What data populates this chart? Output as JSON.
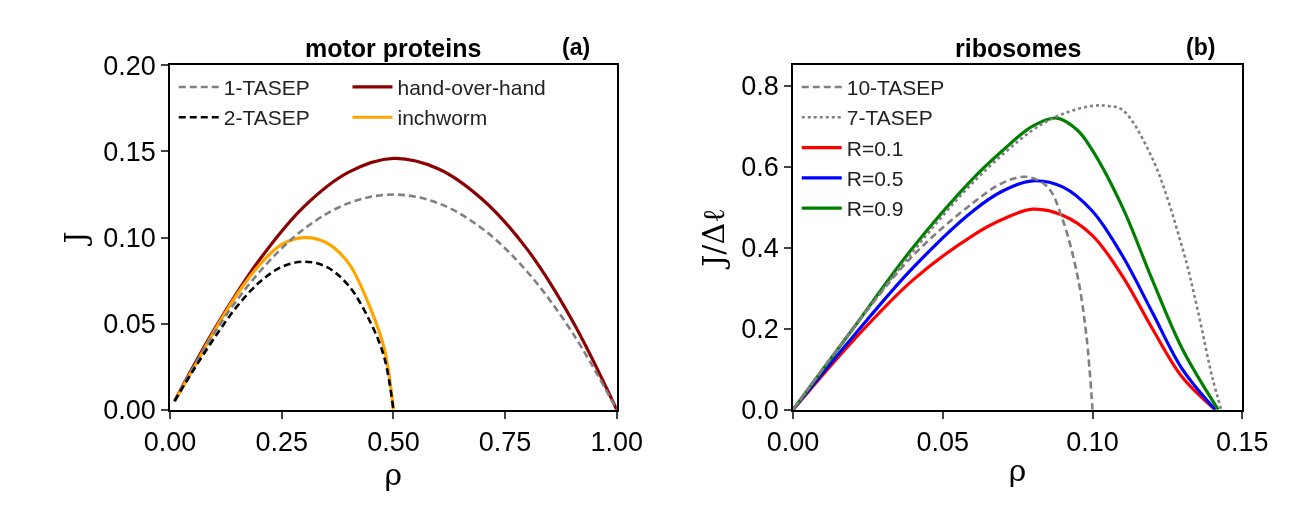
{
  "chart_data": [
    {
      "type": "line",
      "title": "motor proteins",
      "xlabel": "ρ",
      "ylabel": "J",
      "annotations": [
        "(a)"
      ],
      "xlim": [
        0,
        1
      ],
      "ylim": [
        0,
        0.2
      ],
      "xticks": [
        {
          "value": 0,
          "label": "0.00"
        },
        0.25,
        {
          "value": 0.5,
          "label": "0.50"
        },
        0.75,
        {
          "value": 1,
          "label": "1.00"
        }
      ],
      "yticks": [
        {
          "value": 0,
          "label": "0.00"
        },
        0.05,
        {
          "value": 0.1,
          "label": "0.10"
        },
        0.15,
        {
          "value": 0.2,
          "label": "0.20"
        }
      ],
      "legend": "top left",
      "series": [
        {
          "name": "1-TASEP",
          "color": "#808080",
          "line_style": "dashed",
          "x": [
            0.01,
            0.1,
            0.2,
            0.3,
            0.4,
            0.5,
            0.6,
            0.7,
            0.8,
            0.9,
            1.0
          ],
          "values": [
            0.005,
            0.045,
            0.08,
            0.105,
            0.12,
            0.125,
            0.12,
            0.105,
            0.08,
            0.045,
            0
          ]
        },
        {
          "name": "2-TASEP",
          "color": "#000000",
          "line_style": "dashed",
          "x": [
            0.01,
            0.05,
            0.1,
            0.15,
            0.2,
            0.25,
            0.3,
            0.35,
            0.4,
            0.45,
            0.48,
            0.5
          ],
          "values": [
            0.005,
            0.022,
            0.042,
            0.06,
            0.074,
            0.083,
            0.086,
            0.083,
            0.072,
            0.05,
            0.03,
            0
          ]
        },
        {
          "name": "hand-over-hand",
          "color": "#8b0000",
          "line_style": "solid",
          "x": [
            0.01,
            0.1,
            0.2,
            0.3,
            0.4,
            0.5,
            0.6,
            0.7,
            0.8,
            0.9,
            1.0
          ],
          "values": [
            0.005,
            0.047,
            0.087,
            0.118,
            0.138,
            0.146,
            0.14,
            0.122,
            0.093,
            0.052,
            0
          ]
        },
        {
          "name": "inchworm",
          "color": "#ffa500",
          "line_style": "solid",
          "x": [
            0.01,
            0.05,
            0.1,
            0.15,
            0.2,
            0.25,
            0.3,
            0.35,
            0.4,
            0.45,
            0.48,
            0.5
          ],
          "values": [
            0.005,
            0.023,
            0.046,
            0.067,
            0.084,
            0.096,
            0.1,
            0.097,
            0.085,
            0.058,
            0.035,
            0
          ]
        }
      ]
    },
    {
      "type": "line",
      "title": "ribosomes",
      "xlabel": "ρ",
      "ylabel": "J/Δℓ",
      "annotations": [
        "(b)"
      ],
      "xlim": [
        0,
        0.15
      ],
      "ylim": [
        0,
        0.85
      ],
      "xticks": [
        {
          "value": 0,
          "label": "0.00"
        },
        0.05,
        {
          "value": 0.1,
          "label": "0.10"
        },
        0.15
      ],
      "yticks": [
        {
          "value": 0,
          "label": "0.0"
        },
        0.2,
        0.4,
        0.6,
        0.8
      ],
      "legend": "top left",
      "series": [
        {
          "name": "10-TASEP",
          "color": "#808080",
          "line_style": "dashed",
          "x": [
            0,
            0.02,
            0.04,
            0.06,
            0.07,
            0.078,
            0.085,
            0.09,
            0.095,
            0.098,
            0.1
          ],
          "values": [
            0,
            0.2,
            0.38,
            0.51,
            0.56,
            0.575,
            0.55,
            0.47,
            0.33,
            0.18,
            0
          ]
        },
        {
          "name": "7-TASEP",
          "color": "#808080",
          "line_style": "dotted",
          "x": [
            0,
            0.02,
            0.04,
            0.06,
            0.08,
            0.09,
            0.1,
            0.105,
            0.11,
            0.12,
            0.13,
            0.135,
            0.14,
            0.143
          ],
          "values": [
            0,
            0.2,
            0.39,
            0.56,
            0.69,
            0.73,
            0.75,
            0.75,
            0.74,
            0.62,
            0.4,
            0.25,
            0.08,
            0
          ]
        },
        {
          "name": "R=0.1",
          "color": "#ff0000",
          "line_style": "solid",
          "x": [
            0,
            0.02,
            0.04,
            0.06,
            0.07,
            0.08,
            0.09,
            0.1,
            0.11,
            0.12,
            0.13,
            0.141
          ],
          "values": [
            0,
            0.17,
            0.32,
            0.43,
            0.47,
            0.495,
            0.48,
            0.43,
            0.33,
            0.2,
            0.08,
            0
          ]
        },
        {
          "name": "R=0.5",
          "color": "#0000ff",
          "line_style": "solid",
          "x": [
            0,
            0.02,
            0.04,
            0.06,
            0.07,
            0.08,
            0.09,
            0.1,
            0.11,
            0.12,
            0.13,
            0.141
          ],
          "values": [
            0,
            0.18,
            0.35,
            0.49,
            0.54,
            0.565,
            0.55,
            0.49,
            0.38,
            0.24,
            0.1,
            0
          ]
        },
        {
          "name": "R=0.9",
          "color": "#008000",
          "line_style": "solid",
          "x": [
            0,
            0.02,
            0.04,
            0.06,
            0.07,
            0.08,
            0.088,
            0.095,
            0.1,
            0.11,
            0.12,
            0.13,
            0.142
          ],
          "values": [
            0,
            0.2,
            0.4,
            0.57,
            0.64,
            0.7,
            0.72,
            0.69,
            0.64,
            0.5,
            0.32,
            0.15,
            0
          ]
        }
      ]
    }
  ]
}
